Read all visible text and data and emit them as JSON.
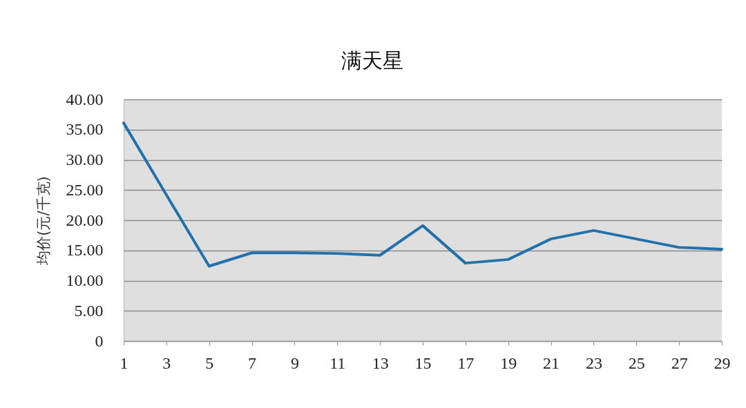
{
  "chart_data": {
    "type": "line",
    "title": "满天星",
    "ylabel": "均价(元/千克)",
    "x": [
      1,
      3,
      5,
      7,
      9,
      11,
      13,
      15,
      17,
      19,
      21,
      23,
      25,
      27,
      29
    ],
    "series": [
      {
        "color": "#2271ab",
        "values": [
          36.1,
          24.2,
          12.4,
          14.6,
          14.6,
          14.5,
          14.2,
          19.1,
          12.9,
          13.5,
          16.9,
          18.3,
          16.9,
          15.5,
          15.2
        ]
      }
    ],
    "xlim": [
      1,
      29
    ],
    "xticks": [
      1,
      3,
      5,
      7,
      9,
      11,
      13,
      15,
      17,
      19,
      21,
      23,
      25,
      27,
      29
    ],
    "ylim": [
      0,
      40
    ],
    "yticks": [
      0,
      {
        "value": 5,
        "label": "5.00"
      },
      {
        "value": 10,
        "label": "10.00"
      },
      {
        "value": 15,
        "label": "15.00"
      },
      {
        "value": 20,
        "label": "20.00"
      },
      {
        "value": 25,
        "label": "25.00"
      },
      {
        "value": 30,
        "label": "30.00"
      },
      {
        "value": 35,
        "label": "35.00"
      },
      {
        "value": 40,
        "label": "40.00"
      }
    ],
    "grid": "y",
    "legend": false,
    "marker": "none",
    "line_style": "solid"
  }
}
